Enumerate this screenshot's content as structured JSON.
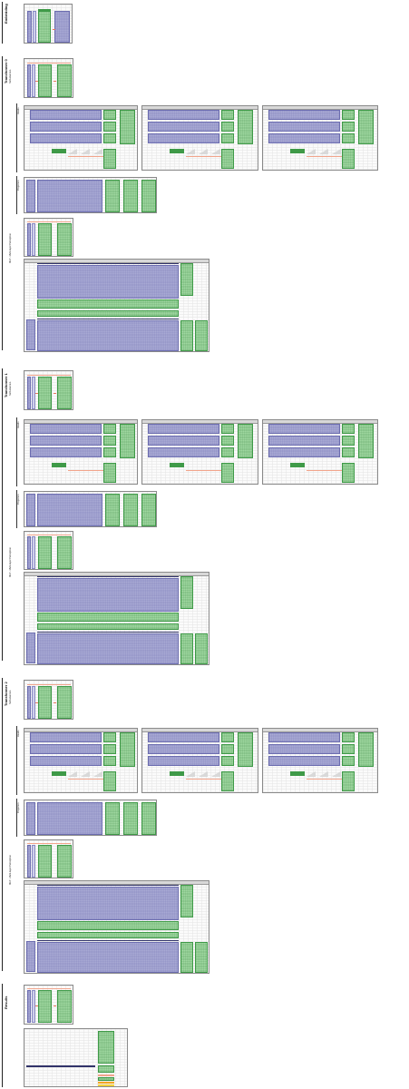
{
  "sections": {
    "embedding": "Embedding",
    "transformer0": "Transformer 0",
    "transformer1": "Transformer 1",
    "transformer2": "Transformer 2",
    "results": "Results"
  },
  "sublabels": {
    "self_attention": "Self-attention",
    "heads": "Heads",
    "projection": "Projection",
    "mlp": "MLP - Multi-layer Perceptron"
  },
  "colors": {
    "weights": "#a8a9d4",
    "activations": "#9fd7a0",
    "highlight": "#f2a58c",
    "accent": "#f5a623"
  }
}
